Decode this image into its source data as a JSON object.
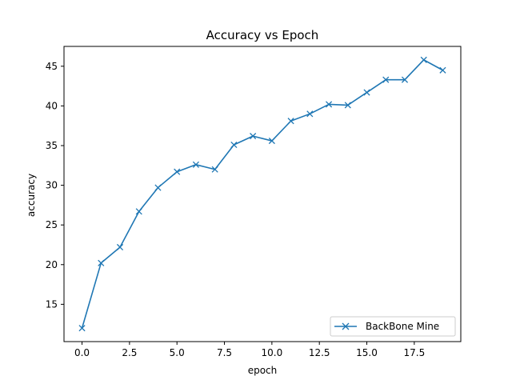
{
  "chart_data": {
    "type": "line",
    "title": "Accuracy vs Epoch",
    "xlabel": "epoch",
    "ylabel": "accuracy",
    "xlim": [
      -0.95,
      19.95
    ],
    "ylim": [
      10.3,
      47.5
    ],
    "xticks": [
      0.0,
      2.5,
      5.0,
      7.5,
      10.0,
      12.5,
      15.0,
      17.5
    ],
    "xtick_labels": [
      "0.0",
      "2.5",
      "5.0",
      "7.5",
      "10.0",
      "12.5",
      "15.0",
      "17.5"
    ],
    "yticks": [
      15,
      20,
      25,
      30,
      35,
      40,
      45
    ],
    "ytick_labels": [
      "15",
      "20",
      "25",
      "30",
      "35",
      "40",
      "45"
    ],
    "grid": false,
    "legend_position": "lower-right",
    "series": [
      {
        "name": "BackBone Mine",
        "color": "#1f77b4",
        "marker": "x",
        "x": [
          0,
          1,
          2,
          3,
          4,
          5,
          6,
          7,
          8,
          9,
          10,
          11,
          12,
          13,
          14,
          15,
          16,
          17,
          18,
          19
        ],
        "y": [
          12.0,
          20.2,
          22.2,
          26.7,
          29.7,
          31.7,
          32.6,
          32.0,
          35.1,
          36.2,
          35.6,
          38.1,
          39.0,
          40.2,
          40.1,
          41.7,
          43.3,
          43.3,
          45.8,
          44.5
        ]
      }
    ]
  }
}
